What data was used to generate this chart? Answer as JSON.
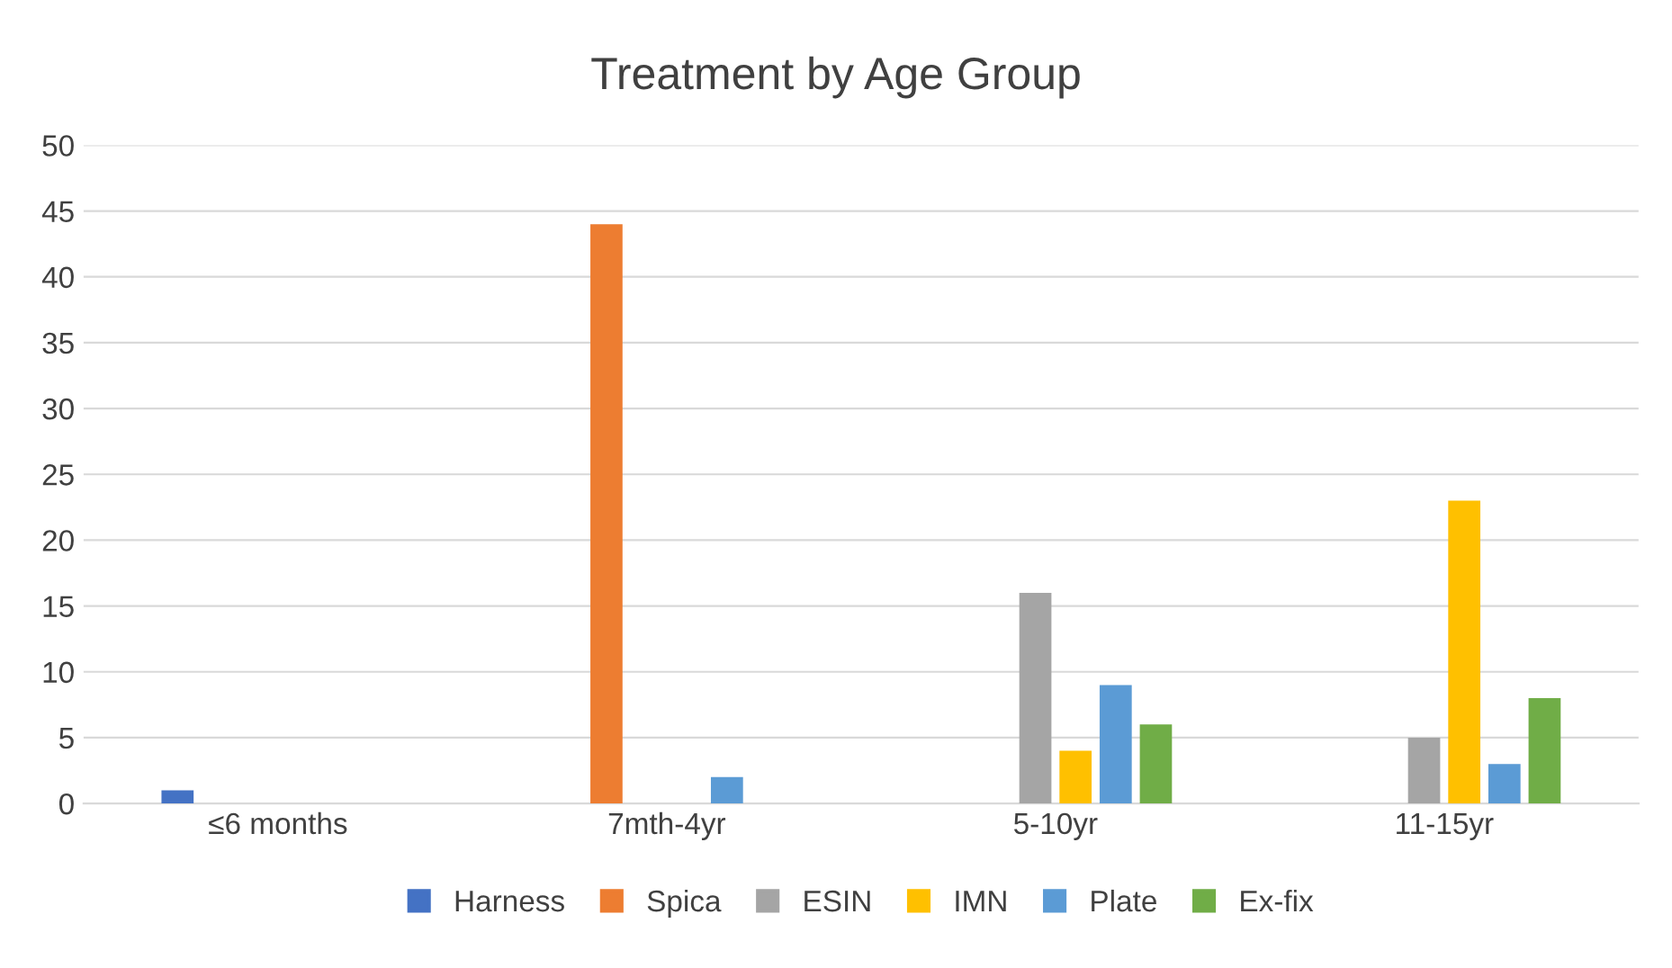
{
  "chart_data": {
    "type": "bar",
    "title": "Treatment by Age Group",
    "categories": [
      "≤6 months",
      "7mth-4yr",
      "5-10yr",
      "11-15yr"
    ],
    "series": [
      {
        "name": "Harness",
        "color": "#4472c4",
        "values": [
          1,
          0,
          0,
          0
        ]
      },
      {
        "name": "Spica",
        "color": "#ed7d31",
        "values": [
          0,
          44,
          0,
          0
        ]
      },
      {
        "name": "ESIN",
        "color": "#a5a5a5",
        "values": [
          0,
          0,
          16,
          5
        ]
      },
      {
        "name": "IMN",
        "color": "#ffc000",
        "values": [
          0,
          0,
          4,
          23
        ]
      },
      {
        "name": "Plate",
        "color": "#5b9bd5",
        "values": [
          0,
          2,
          9,
          3
        ]
      },
      {
        "name": "Ex-fix",
        "color": "#70ad47",
        "values": [
          0,
          0,
          6,
          8
        ]
      }
    ],
    "ylim": [
      0,
      50
    ],
    "yticks": [
      0,
      5,
      10,
      15,
      20,
      25,
      30,
      35,
      40,
      45,
      50
    ],
    "grid": "y",
    "legend": "bottom"
  }
}
